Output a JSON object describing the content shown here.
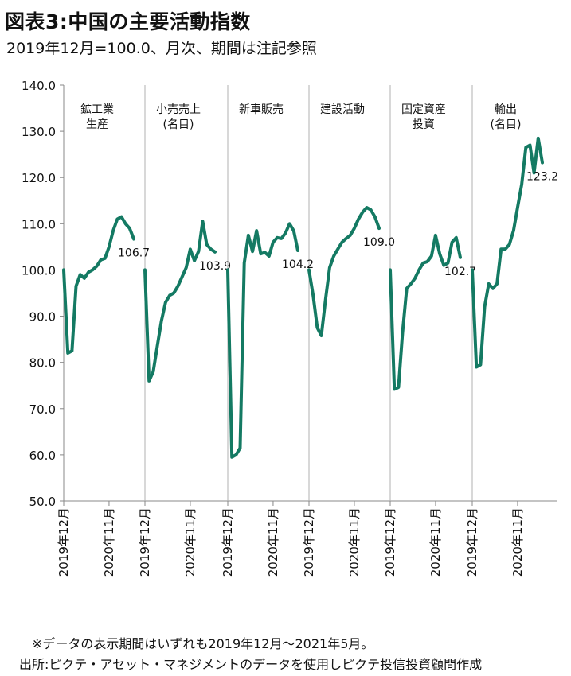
{
  "title": "図表3:中国の主要活動指数",
  "subtitle": "2019年12月=100.0、月次、期間は注記参照",
  "notes": {
    "line1": "※データの表示期間はいずれも2019年12月～2021年5月。",
    "line2": "出所:ピクテ・アセット・マネジメントのデータを使用しピクテ投信投資顧問作成"
  },
  "colors": {
    "line": "#147a63",
    "axis": "#888888",
    "divider": "#b0b0b0",
    "baseline": "#777777"
  },
  "chart_data": {
    "type": "line",
    "ylim": [
      50,
      140
    ],
    "y_ticks": [
      "50.0",
      "60.0",
      "70.0",
      "80.0",
      "90.0",
      "100.0",
      "110.0",
      "120.0",
      "130.0",
      "140.0"
    ],
    "baseline": 100,
    "grid": false,
    "x_tick_labels": [
      "2019年12月",
      "2020年11月"
    ],
    "months": [
      "2019-12",
      "2020-01",
      "2020-02",
      "2020-03",
      "2020-04",
      "2020-05",
      "2020-06",
      "2020-07",
      "2020-08",
      "2020-09",
      "2020-10",
      "2020-11",
      "2020-12",
      "2021-01",
      "2021-02",
      "2021-03",
      "2021-04",
      "2021-05"
    ],
    "panels": [
      {
        "name": "鉱工業生産",
        "label_lines": [
          "鉱工業",
          "生産"
        ],
        "end_label": "106.7",
        "values": [
          100.0,
          82.0,
          82.5,
          96.5,
          99.0,
          98.2,
          99.5,
          100.0,
          100.8,
          102.2,
          102.5,
          105.0,
          108.5,
          111.0,
          111.5,
          110.0,
          109.0,
          106.7
        ]
      },
      {
        "name": "小売売上(名目)",
        "label_lines": [
          "小売売上",
          "(名目)"
        ],
        "end_label": "103.9",
        "values": [
          100.0,
          76.0,
          78.0,
          83.5,
          89.0,
          93.0,
          94.5,
          95.0,
          96.5,
          98.5,
          100.5,
          104.5,
          102.0,
          104.0,
          110.5,
          105.5,
          104.5,
          103.9
        ]
      },
      {
        "name": "新車販売",
        "label_lines": [
          "新車販売"
        ],
        "end_label": "104.2",
        "values": [
          100.0,
          59.5,
          60.0,
          61.5,
          101.5,
          107.5,
          104.0,
          108.5,
          103.5,
          103.8,
          103.0,
          106.0,
          107.0,
          106.8,
          108.0,
          110.0,
          108.5,
          104.2
        ]
      },
      {
        "name": "建設活動",
        "label_lines": [
          "建設活動"
        ],
        "end_label": "109.0",
        "values": [
          100.0,
          94.5,
          87.5,
          85.8,
          93.5,
          100.5,
          103.0,
          104.5,
          106.0,
          106.8,
          107.5,
          109.0,
          111.0,
          112.5,
          113.5,
          113.0,
          111.5,
          109.0
        ]
      },
      {
        "name": "固定資産投資",
        "label_lines": [
          "固定資産",
          "投資"
        ],
        "end_label": "102.7",
        "values": [
          100.0,
          74.2,
          74.6,
          86.5,
          96.0,
          97.0,
          98.2,
          100.0,
          101.5,
          101.8,
          103.0,
          107.5,
          103.5,
          101.0,
          101.5,
          106.0,
          107.0,
          102.7
        ]
      },
      {
        "name": "輸出(名目)",
        "label_lines": [
          "輸出",
          "(名目)"
        ],
        "end_label": "123.2",
        "values": [
          100.0,
          79.0,
          79.5,
          92.0,
          97.0,
          96.0,
          97.0,
          104.5,
          104.5,
          105.5,
          108.5,
          113.5,
          118.5,
          126.5,
          127.0,
          121.0,
          128.5,
          123.2
        ]
      }
    ]
  }
}
